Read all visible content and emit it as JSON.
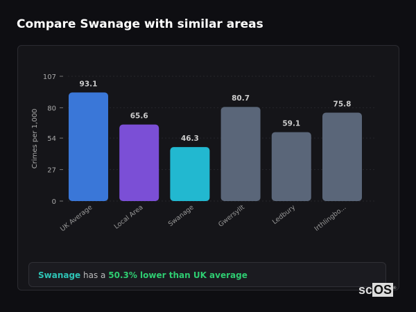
{
  "title": "Compare Swanage with similar areas",
  "chart_data": {
    "type": "bar",
    "categories": [
      "UK Average",
      "Local Area",
      "Swanage",
      "Gwersyllt",
      "Ledbury",
      "Irthlingbo..."
    ],
    "values": [
      93.1,
      65.6,
      46.3,
      80.7,
      59.1,
      75.8
    ],
    "colors": [
      "#3a77d8",
      "#7b4fd6",
      "#22b8d0",
      "#5a6679",
      "#5a6679",
      "#5a6679"
    ],
    "ylabel": "Crimes per 1,000",
    "yticks": [
      0,
      27,
      54,
      80,
      107
    ],
    "ylim": [
      0,
      107
    ],
    "grid": true
  },
  "summary": {
    "area": "Swanage",
    "middle": "has a",
    "difference": "50.3% lower than UK average"
  },
  "logo": {
    "text": "scOS",
    "mark": "®"
  }
}
